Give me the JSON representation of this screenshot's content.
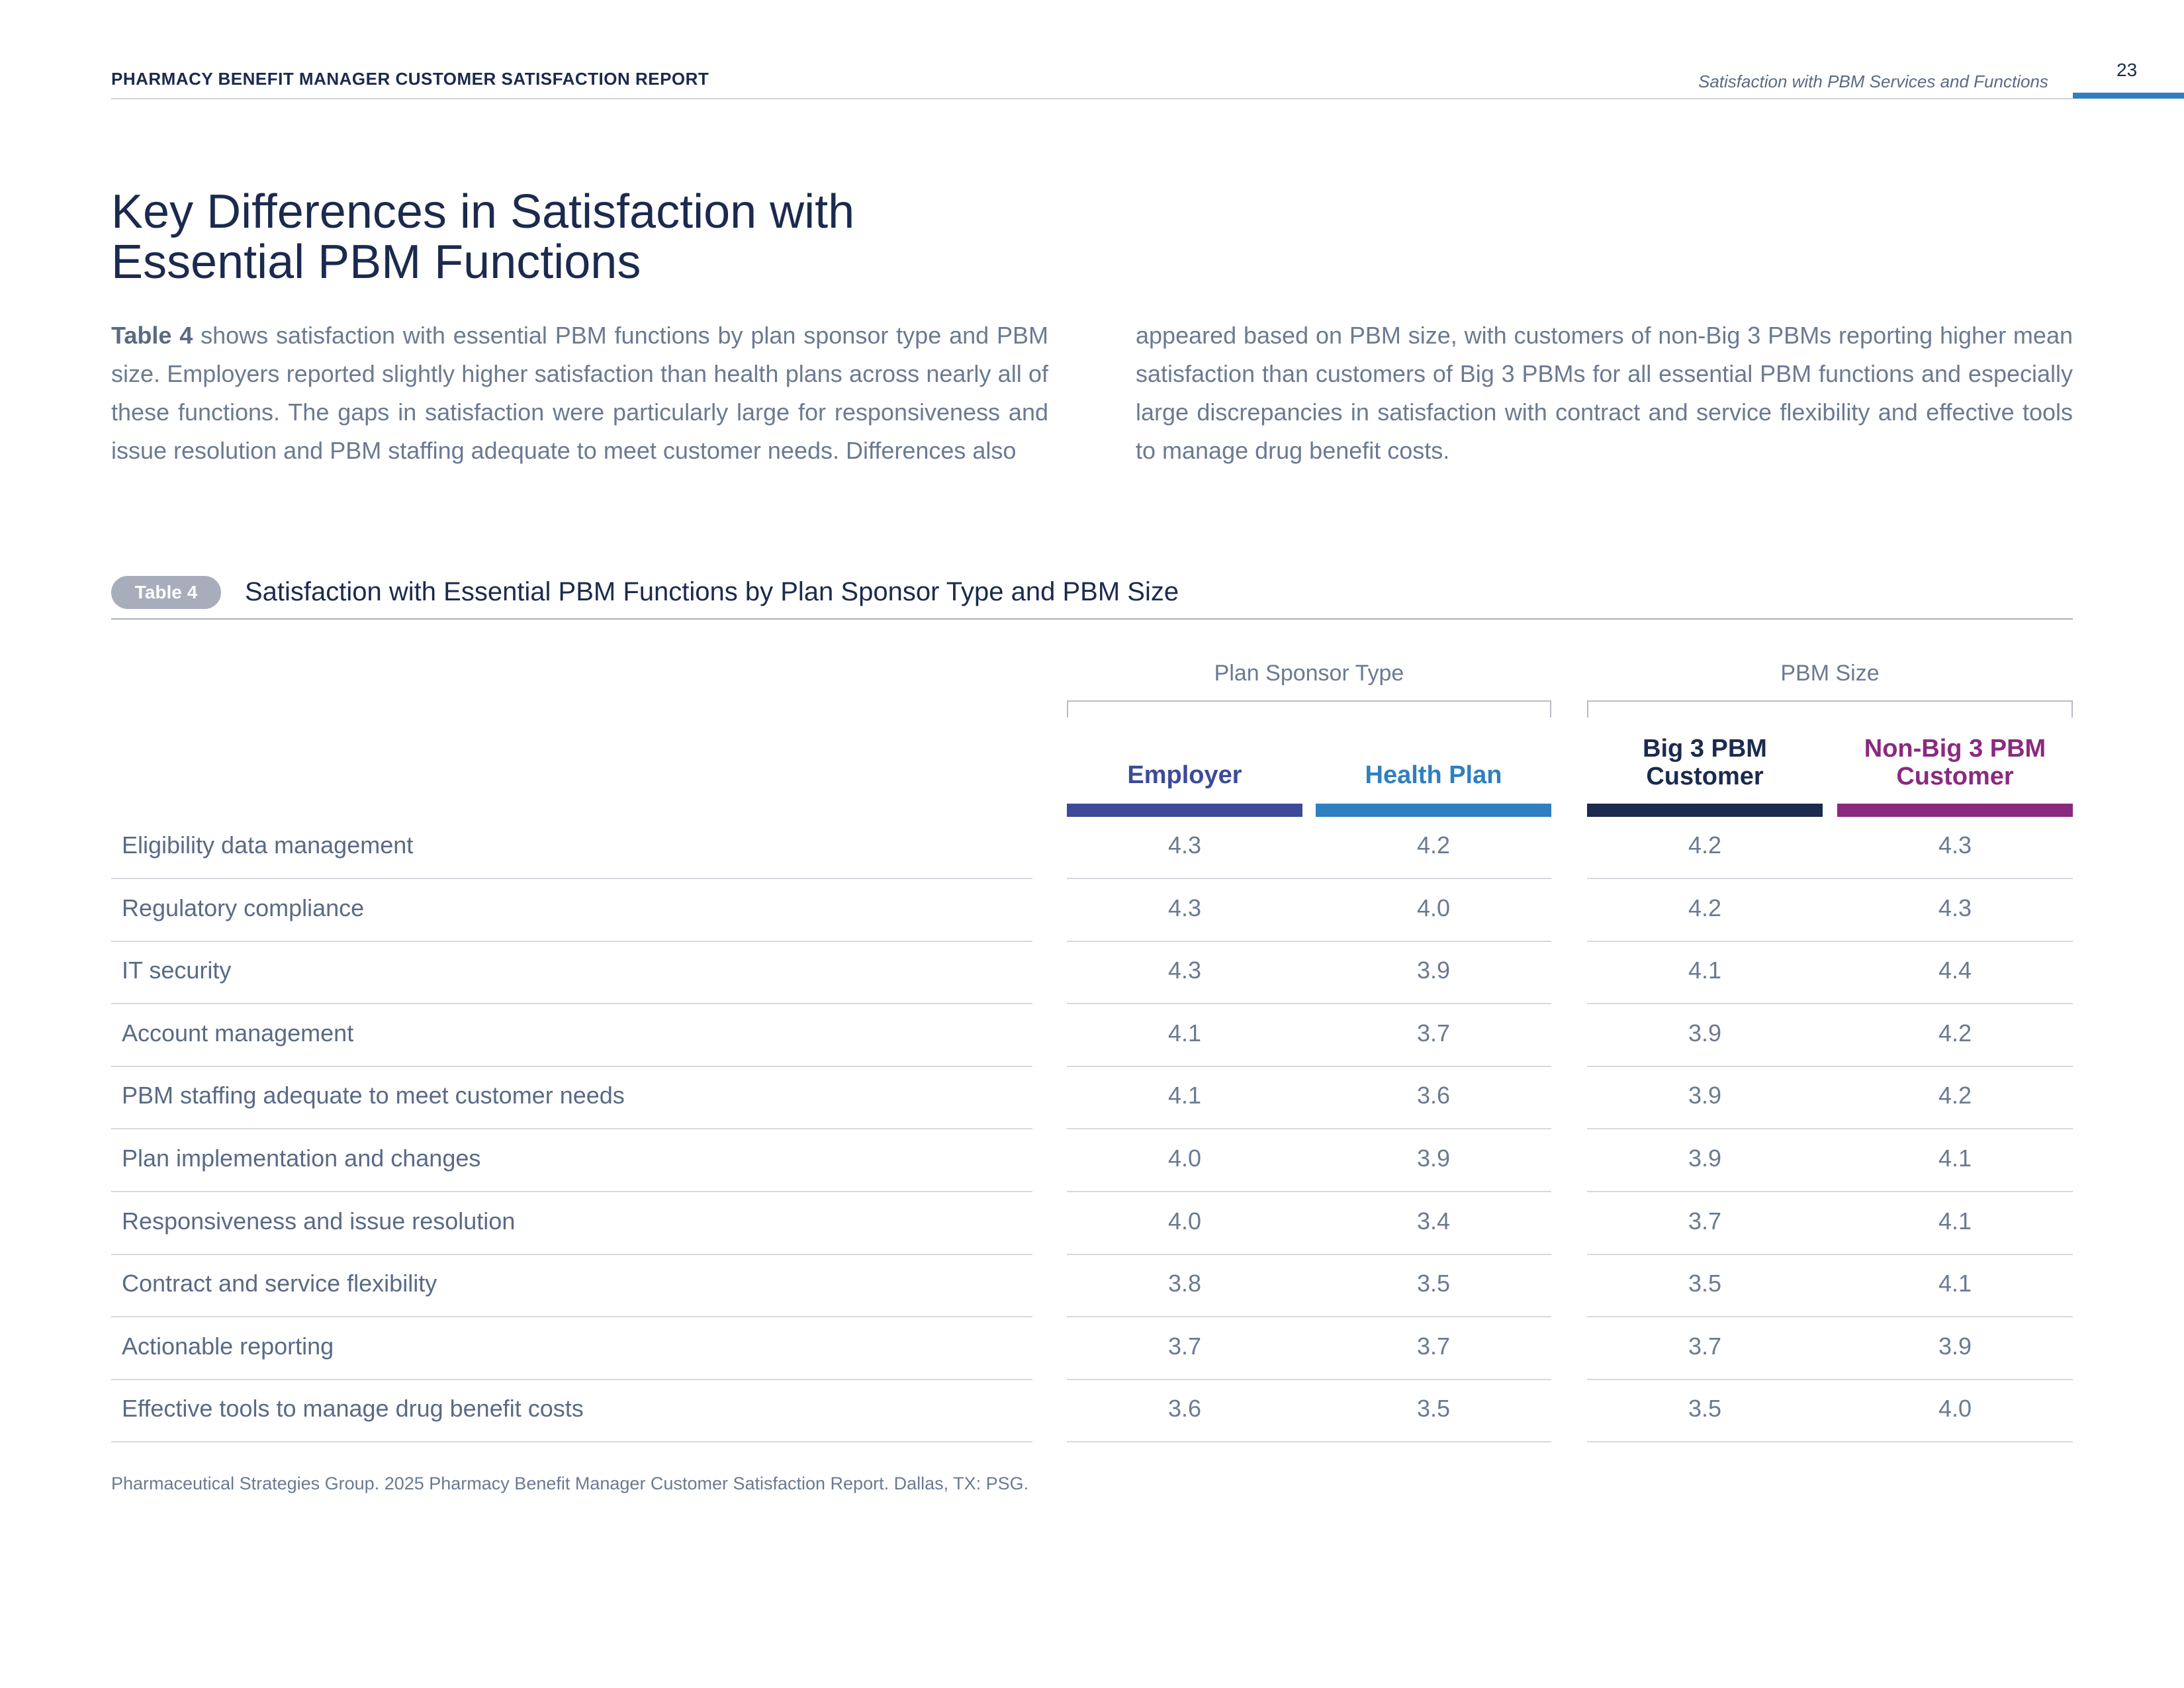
{
  "header": {
    "report_title": "PHARMACY BENEFIT MANAGER CUSTOMER SATISFACTION REPORT",
    "section": "Satisfaction with PBM Services and Functions",
    "page_number": "23",
    "accent_color": "#2f7fc1"
  },
  "page_title": "Key Differences in Satisfaction with Essential PBM Functions",
  "intro": {
    "ref": "Table 4",
    "left_text": " shows satisfaction with essential PBM functions by plan sponsor type and PBM size. Employers reported slightly higher satisfaction than health plans across nearly all of these functions. The gaps in satisfaction were particularly large for responsiveness and issue resolution and PBM staffing adequate to meet customer needs. Differences also",
    "right_text": "appeared based on PBM size, with customers of non-Big 3 PBMs reporting higher mean satisfaction than customers of Big 3 PBMs for all essential PBM functions and especially large discrepancies in satisfaction with contract and service flexibility and effective tools to manage drug benefit costs."
  },
  "table": {
    "badge": "Table 4",
    "caption": "Satisfaction with Essential PBM Functions by Plan Sponsor Type and PBM Size",
    "groups": [
      "Plan Sponsor Type",
      "PBM Size"
    ],
    "columns": [
      {
        "line1": "Employer",
        "line2": "",
        "color": "#3d4a9a"
      },
      {
        "line1": "Health Plan",
        "line2": "",
        "color": "#2f7fc1"
      },
      {
        "line1": "Big 3 PBM",
        "line2": "Customer",
        "color": "#1b2a4e"
      },
      {
        "line1": "Non-Big 3 PBM",
        "line2": "Customer",
        "color": "#8a2a7f"
      }
    ],
    "rows": [
      {
        "label": "Eligibility data management",
        "values": [
          "4.3",
          "4.2",
          "4.2",
          "4.3"
        ]
      },
      {
        "label": "Regulatory compliance",
        "values": [
          "4.3",
          "4.0",
          "4.2",
          "4.3"
        ]
      },
      {
        "label": "IT security",
        "values": [
          "4.3",
          "3.9",
          "4.1",
          "4.4"
        ]
      },
      {
        "label": "Account management",
        "values": [
          "4.1",
          "3.7",
          "3.9",
          "4.2"
        ]
      },
      {
        "label": "PBM staffing adequate to meet customer needs",
        "values": [
          "4.1",
          "3.6",
          "3.9",
          "4.2"
        ]
      },
      {
        "label": "Plan implementation and changes",
        "values": [
          "4.0",
          "3.9",
          "3.9",
          "4.1"
        ]
      },
      {
        "label": "Responsiveness and issue resolution",
        "values": [
          "4.0",
          "3.4",
          "3.7",
          "4.1"
        ]
      },
      {
        "label": "Contract and service flexibility",
        "values": [
          "3.8",
          "3.5",
          "3.5",
          "4.1"
        ]
      },
      {
        "label": "Actionable reporting",
        "values": [
          "3.7",
          "3.7",
          "3.7",
          "3.9"
        ]
      },
      {
        "label": "Effective tools to manage drug benefit costs",
        "values": [
          "3.6",
          "3.5",
          "3.5",
          "4.0"
        ]
      }
    ]
  },
  "source": "Pharmaceutical Strategies Group. 2025 Pharmacy Benefit Manager Customer Satisfaction Report. Dallas, TX: PSG."
}
